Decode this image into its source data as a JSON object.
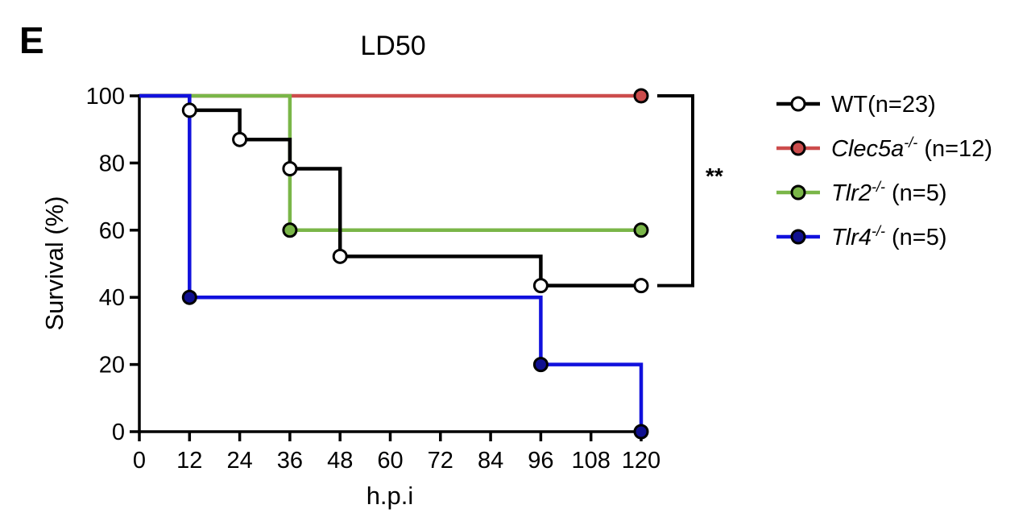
{
  "panel_letter": "E",
  "chart_data": {
    "type": "line",
    "title": "LD50",
    "xlabel": "h.p.i",
    "ylabel": "Survival (%)",
    "x_ticks": [
      0,
      12,
      24,
      36,
      48,
      60,
      72,
      84,
      96,
      108,
      120
    ],
    "y_ticks": [
      0,
      20,
      40,
      60,
      80,
      100
    ],
    "xlim": [
      0,
      120
    ],
    "ylim": [
      0,
      100
    ],
    "step": true,
    "legend_position": "right",
    "significance": "**",
    "series": [
      {
        "legend_gene": "WT",
        "legend_sup": "",
        "legend_suffix": "(n=23)",
        "legend_italic": false,
        "color": "#000000",
        "marker_fill": "#ffffff",
        "steps": [
          [
            0,
            100
          ],
          [
            12,
            95.7
          ],
          [
            24,
            87
          ],
          [
            36,
            78.3
          ],
          [
            48,
            52.2
          ],
          [
            96,
            43.5
          ],
          [
            120,
            43.5
          ]
        ],
        "markers": [
          [
            12,
            95.7
          ],
          [
            24,
            87
          ],
          [
            36,
            78.3
          ],
          [
            48,
            52.2
          ],
          [
            96,
            43.5
          ],
          [
            120,
            43.5
          ]
        ]
      },
      {
        "legend_gene": "Clec5a",
        "legend_sup": "-/-",
        "legend_suffix": " (n=12)",
        "legend_italic": true,
        "color": "#cc4c4c",
        "marker_fill": "#cc4c4c",
        "steps": [
          [
            0,
            100
          ],
          [
            120,
            100
          ]
        ],
        "markers": [
          [
            120,
            100
          ]
        ]
      },
      {
        "legend_gene": "Tlr2",
        "legend_sup": "-/-",
        "legend_suffix": " (n=5)",
        "legend_italic": true,
        "color": "#7ab648",
        "marker_fill": "#7ab648",
        "steps": [
          [
            0,
            100
          ],
          [
            36,
            60
          ],
          [
            120,
            60
          ]
        ],
        "markers": [
          [
            36,
            60
          ],
          [
            120,
            60
          ]
        ]
      },
      {
        "legend_gene": "Tlr4",
        "legend_sup": "-/-",
        "legend_suffix": " (n=5)",
        "legend_italic": true,
        "color": "#1111dd",
        "marker_fill": "#101090",
        "steps": [
          [
            0,
            100
          ],
          [
            12,
            40
          ],
          [
            96,
            20
          ],
          [
            120,
            0
          ]
        ],
        "markers": [
          [
            12,
            40
          ],
          [
            96,
            20
          ],
          [
            120,
            0
          ]
        ]
      }
    ]
  }
}
